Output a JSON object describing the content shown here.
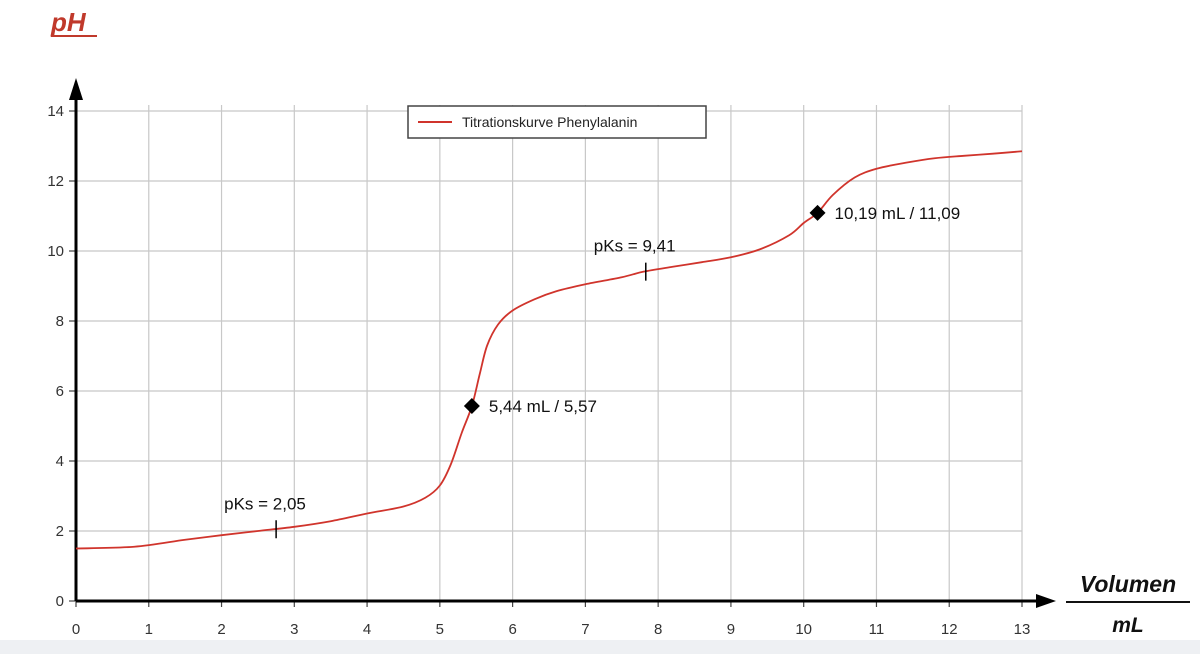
{
  "chart_data": {
    "type": "line",
    "ylabel": "pH",
    "xlabel_numerator": "Volumen",
    "xlabel_denominator": "mL",
    "xlim": [
      0,
      13
    ],
    "ylim": [
      0,
      14
    ],
    "x_ticks": [
      "0",
      "1",
      "2",
      "3",
      "4",
      "5",
      "6",
      "7",
      "8",
      "9",
      "10",
      "11",
      "12",
      "13"
    ],
    "y_ticks": [
      "0",
      "2",
      "4",
      "6",
      "8",
      "10",
      "12",
      "14"
    ],
    "grid": true,
    "legend_position": "top-center",
    "series": [
      {
        "name": "Titrationskurve Phenylalanin",
        "color": "#d0342c",
        "x": [
          0,
          0.8,
          1.5,
          2,
          2.5,
          3,
          3.5,
          4,
          4.5,
          4.8,
          5.0,
          5.15,
          5.3,
          5.44,
          5.55,
          5.65,
          5.8,
          6.0,
          6.3,
          6.6,
          7.0,
          7.5,
          7.8,
          8.2,
          8.6,
          9.0,
          9.4,
          9.8,
          10.0,
          10.19,
          10.4,
          10.7,
          11.0,
          11.4,
          11.8,
          12.2,
          12.6,
          13.0
        ],
        "y": [
          1.5,
          1.55,
          1.75,
          1.88,
          2.0,
          2.12,
          2.28,
          2.5,
          2.7,
          2.95,
          3.3,
          3.9,
          4.8,
          5.57,
          6.5,
          7.3,
          7.9,
          8.3,
          8.62,
          8.85,
          9.05,
          9.25,
          9.41,
          9.55,
          9.68,
          9.82,
          10.05,
          10.45,
          10.8,
          11.09,
          11.6,
          12.1,
          12.35,
          12.52,
          12.65,
          12.72,
          12.78,
          12.85
        ]
      }
    ],
    "markers": [
      {
        "type": "diamond",
        "x": 5.44,
        "y": 5.57,
        "label": "5,44 mL / 5,57"
      },
      {
        "type": "diamond",
        "x": 10.19,
        "y": 11.09,
        "label": "10,19 mL / 11,09"
      },
      {
        "type": "tick",
        "x": 2.75,
        "y": 2.05,
        "label": "pKs = 2,05"
      },
      {
        "type": "tick",
        "x": 7.83,
        "y": 9.41,
        "label": "pKs = 9,41"
      }
    ]
  }
}
